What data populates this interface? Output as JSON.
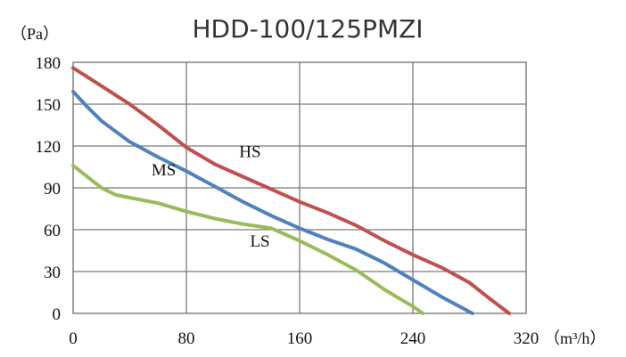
{
  "chart_data": {
    "type": "line",
    "title": "HDD-100/125PMZI",
    "ylabel": "（Pa）",
    "xlabel": "（m³/h）",
    "xlim": [
      0,
      320
    ],
    "ylim": [
      0,
      180
    ],
    "xticks": [
      0,
      80,
      160,
      240,
      320
    ],
    "yticks": [
      0,
      30,
      60,
      90,
      120,
      150,
      180
    ],
    "grid": true,
    "series": [
      {
        "name": "HS",
        "color": "#c0504d",
        "x": [
          0,
          20,
          40,
          60,
          80,
          100,
          120,
          140,
          160,
          180,
          200,
          220,
          240,
          260,
          280,
          295,
          308
        ],
        "y": [
          176,
          163,
          150,
          135,
          119,
          107,
          98,
          89,
          80,
          72,
          63,
          52,
          42,
          33,
          22,
          10,
          0
        ]
      },
      {
        "name": "MS",
        "color": "#4f81bd",
        "x": [
          0,
          10,
          20,
          40,
          60,
          80,
          100,
          120,
          140,
          160,
          180,
          200,
          220,
          240,
          260,
          282
        ],
        "y": [
          159,
          148,
          138,
          123,
          112,
          102,
          91,
          80,
          70,
          61,
          53,
          46,
          36,
          24,
          12,
          0
        ]
      },
      {
        "name": "LS",
        "color": "#9bbb59",
        "x": [
          0,
          10,
          20,
          30,
          40,
          60,
          80,
          100,
          120,
          140,
          160,
          180,
          200,
          220,
          240,
          247
        ],
        "y": [
          106,
          98,
          90,
          85,
          83,
          79,
          73,
          68,
          64,
          61,
          52,
          42,
          31,
          17,
          5,
          0
        ]
      }
    ],
    "series_labels": [
      {
        "text": "HS",
        "series": "HS",
        "x": 125,
        "y": 112
      },
      {
        "text": "MS",
        "series": "MS",
        "x": 64,
        "y": 99
      },
      {
        "text": "LS",
        "series": "LS",
        "x": 132,
        "y": 48
      }
    ]
  }
}
